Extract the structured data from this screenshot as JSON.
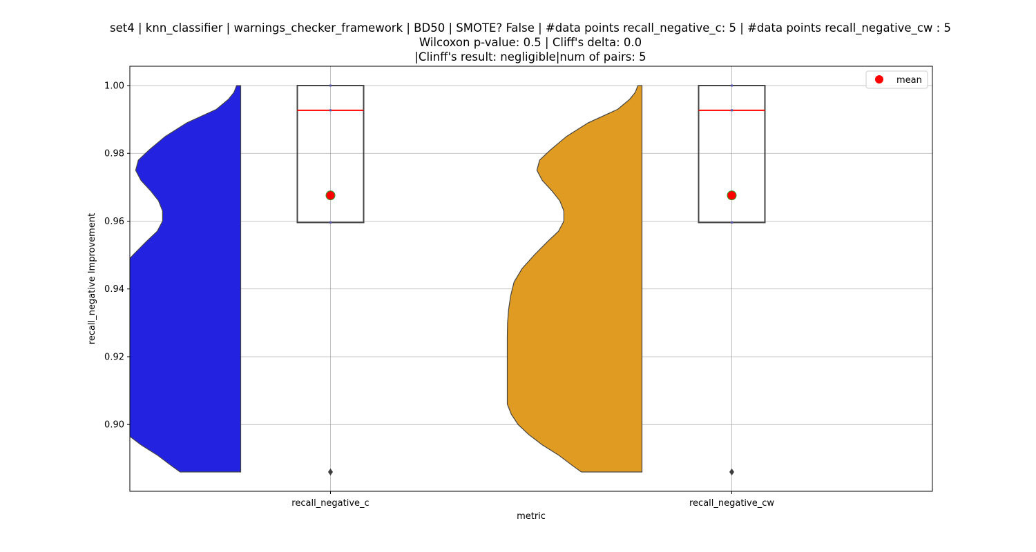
{
  "chart_data": {
    "type": "violin-box",
    "title_lines": [
      "set4 | knn_classifier | warnings_checker_framework | BD50 | SMOTE? False | #data points recall_negative_c: 5 | #data points recall_negative_cw : 5",
      "Wilcoxon p-value: 0.5 | Cliff's delta: 0.0",
      "|Clinff's result: negligible|num of pairs: 5"
    ],
    "xlabel": "metric",
    "ylabel": "recall_negative Improvement",
    "categories": [
      "recall_negative_c",
      "recall_negative_cw"
    ],
    "ylim": [
      0.8803,
      1.0057
    ],
    "yticks": [
      0.9,
      0.92,
      0.94,
      0.96,
      0.98,
      1.0
    ],
    "ytick_labels": [
      "0.90",
      "0.92",
      "0.94",
      "0.96",
      "0.98",
      "1.00"
    ],
    "grid": true,
    "legend": {
      "position": "top-right",
      "entries": [
        {
          "label": "mean",
          "color": "#ff0000"
        }
      ]
    },
    "series": [
      {
        "name": "recall_negative_c",
        "color": "#2222e0",
        "violin_side": "left",
        "values": [
          0.886,
          0.9596,
          0.9927,
          1.0,
          1.0
        ],
        "box": {
          "q1": 0.9596,
          "median": 0.9927,
          "q3": 1.0,
          "whisker_low": 0.9596,
          "whisker_high": 1.0,
          "outliers": [
            0.886
          ]
        },
        "mean": 0.9676,
        "violin_range": [
          0.886,
          1.0
        ],
        "density": [
          [
            0.886,
            0.45
          ],
          [
            0.888,
            0.52
          ],
          [
            0.891,
            0.62
          ],
          [
            0.894,
            0.74
          ],
          [
            0.897,
            0.84
          ],
          [
            0.9,
            0.92
          ],
          [
            0.903,
            0.97
          ],
          [
            0.906,
            1.0
          ],
          [
            0.91,
            1.0
          ],
          [
            0.914,
            1.0
          ],
          [
            0.918,
            1.0
          ],
          [
            0.922,
            1.0
          ],
          [
            0.926,
            1.0
          ],
          [
            0.93,
            0.998
          ],
          [
            0.934,
            0.99
          ],
          [
            0.938,
            0.975
          ],
          [
            0.942,
            0.95
          ],
          [
            0.946,
            0.89
          ],
          [
            0.95,
            0.8
          ],
          [
            0.954,
            0.7
          ],
          [
            0.957,
            0.62
          ],
          [
            0.96,
            0.58
          ],
          [
            0.963,
            0.58
          ],
          [
            0.966,
            0.61
          ],
          [
            0.969,
            0.67
          ],
          [
            0.972,
            0.74
          ],
          [
            0.975,
            0.78
          ],
          [
            0.978,
            0.76
          ],
          [
            0.981,
            0.68
          ],
          [
            0.985,
            0.56
          ],
          [
            0.989,
            0.4
          ],
          [
            0.993,
            0.18
          ],
          [
            0.996,
            0.09
          ],
          [
            0.998,
            0.05
          ],
          [
            1.0,
            0.03
          ]
        ]
      },
      {
        "name": "recall_negative_cw",
        "color": "#e09b22",
        "violin_side": "left",
        "values": [
          0.886,
          0.9596,
          0.9927,
          1.0,
          1.0
        ],
        "box": {
          "q1": 0.9596,
          "median": 0.9927,
          "q3": 1.0,
          "whisker_low": 0.9596,
          "whisker_high": 1.0,
          "outliers": [
            0.886
          ]
        },
        "mean": 0.9676,
        "violin_range": [
          0.886,
          1.0
        ],
        "density": [
          [
            0.886,
            0.45
          ],
          [
            0.888,
            0.52
          ],
          [
            0.891,
            0.62
          ],
          [
            0.894,
            0.74
          ],
          [
            0.897,
            0.84
          ],
          [
            0.9,
            0.92
          ],
          [
            0.903,
            0.97
          ],
          [
            0.906,
            1.0
          ],
          [
            0.91,
            1.0
          ],
          [
            0.914,
            1.0
          ],
          [
            0.918,
            1.0
          ],
          [
            0.922,
            1.0
          ],
          [
            0.926,
            1.0
          ],
          [
            0.93,
            0.998
          ],
          [
            0.934,
            0.99
          ],
          [
            0.938,
            0.975
          ],
          [
            0.942,
            0.95
          ],
          [
            0.946,
            0.89
          ],
          [
            0.95,
            0.8
          ],
          [
            0.954,
            0.7
          ],
          [
            0.957,
            0.62
          ],
          [
            0.96,
            0.58
          ],
          [
            0.963,
            0.58
          ],
          [
            0.966,
            0.61
          ],
          [
            0.969,
            0.67
          ],
          [
            0.972,
            0.74
          ],
          [
            0.975,
            0.78
          ],
          [
            0.978,
            0.76
          ],
          [
            0.981,
            0.68
          ],
          [
            0.985,
            0.56
          ],
          [
            0.989,
            0.4
          ],
          [
            0.993,
            0.18
          ],
          [
            0.996,
            0.09
          ],
          [
            0.998,
            0.05
          ],
          [
            1.0,
            0.03
          ]
        ]
      }
    ],
    "colors": {
      "median_line": "#ff0000",
      "mean_marker": "#ff0000",
      "mean_marker_edge": "#2ca02c",
      "box_edge": "#444444",
      "grid": "#b0b0b0"
    }
  }
}
